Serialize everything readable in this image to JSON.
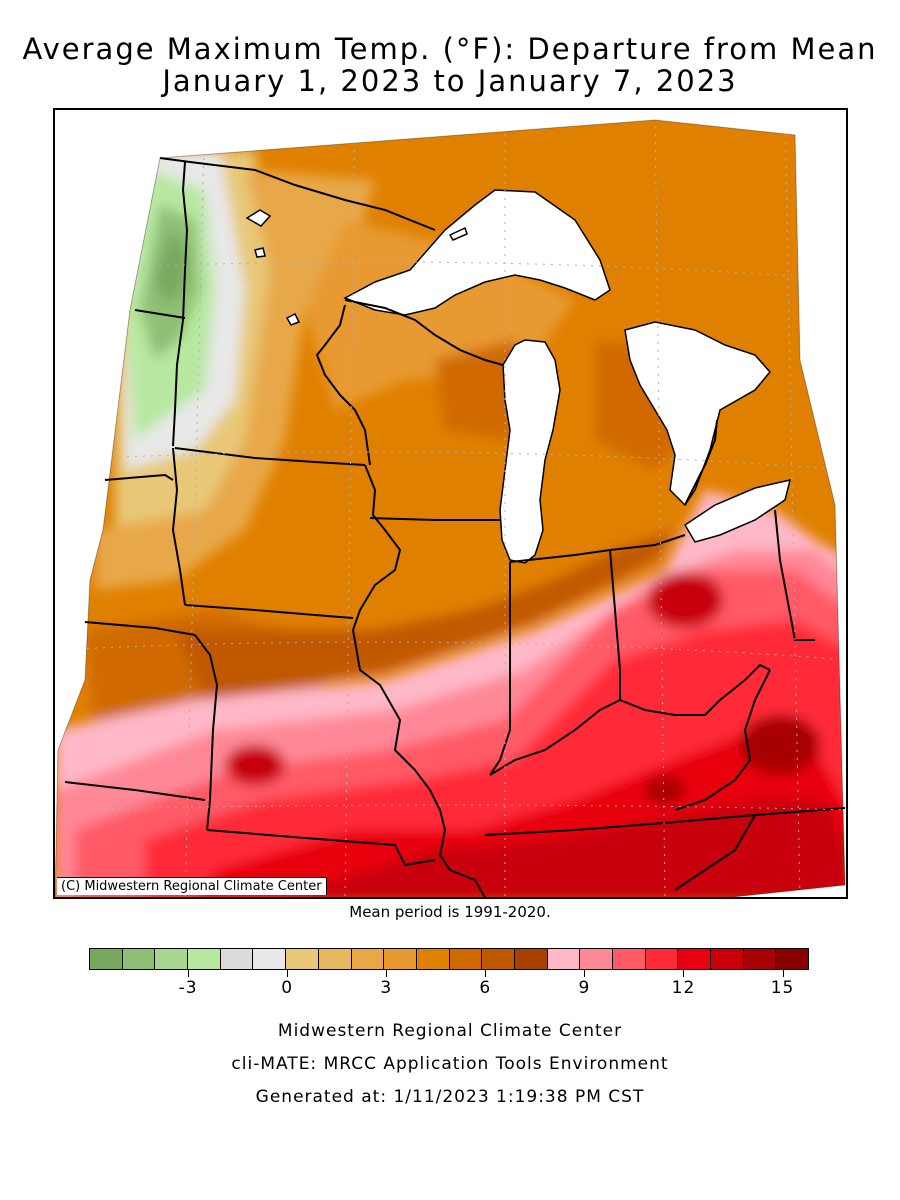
{
  "title": {
    "line1": "Average Maximum Temp. (°F): Departure from Mean",
    "line2": "January 1, 2023 to January 7, 2023"
  },
  "map": {
    "copyright": "(C) Midwestern Regional Climate Center",
    "region": "Midwestern United States",
    "states": [
      "Minnesota",
      "Wisconsin",
      "Michigan",
      "Iowa",
      "Illinois",
      "Indiana",
      "Ohio",
      "Missouri",
      "Kentucky"
    ],
    "summary": {
      "west_min_anomaly": -5,
      "south_max_anomaly": 16
    }
  },
  "mean_period": "Mean period is 1991-2020.",
  "legend": {
    "colors": [
      "#78a95e",
      "#8fbf74",
      "#a8d68e",
      "#b8e8a0",
      "#dcdcdc",
      "#e8e8e8",
      "#e8c878",
      "#e8b860",
      "#e8a848",
      "#e89a30",
      "#e08000",
      "#d06a00",
      "#c05800",
      "#a84000",
      "#ffb8c8",
      "#ff8896",
      "#ff5a66",
      "#ff2a38",
      "#e80010",
      "#c80008",
      "#a80004",
      "#880000"
    ],
    "min": -6,
    "max": 15.8,
    "ticks": [
      {
        "value": -3,
        "label": "-3"
      },
      {
        "value": 0,
        "label": "0"
      },
      {
        "value": 3,
        "label": "3"
      },
      {
        "value": 6,
        "label": "6"
      },
      {
        "value": 9,
        "label": "9"
      },
      {
        "value": 12,
        "label": "12"
      },
      {
        "value": 15,
        "label": "15"
      }
    ]
  },
  "footer": {
    "line1": "Midwestern Regional Climate Center",
    "line2": "cli-MATE: MRCC Application Tools Environment",
    "line3": "Generated at: 1/11/2023 1:19:38 PM CST"
  }
}
